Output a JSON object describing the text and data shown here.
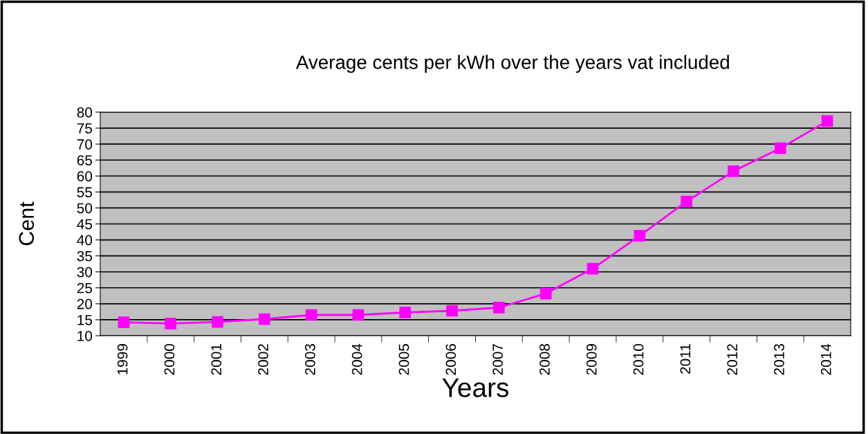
{
  "chart_data": {
    "type": "line",
    "title": "Average cents per kWh over the years vat included",
    "xlabel": "Years",
    "ylabel": "Cent",
    "categories": [
      "1999",
      "2000",
      "2001",
      "2002",
      "2003",
      "2004",
      "2005",
      "2006",
      "2007",
      "2008",
      "2009",
      "2010",
      "2011",
      "2012",
      "2013",
      "2014"
    ],
    "series": [
      {
        "color": "#ff00ff",
        "values": [
          14.2,
          13.8,
          14.3,
          15.2,
          16.5,
          16.5,
          17.3,
          17.8,
          18.8,
          23.2,
          31,
          41.3,
          52,
          61.5,
          68.7,
          77.2
        ]
      }
    ],
    "ylim": [
      10,
      80
    ],
    "yticks": [
      10,
      15,
      20,
      25,
      30,
      35,
      40,
      45,
      50,
      55,
      60,
      65,
      70,
      75,
      80
    ],
    "grid": "y",
    "marker": "square",
    "line_style": "solid",
    "legend": false
  }
}
